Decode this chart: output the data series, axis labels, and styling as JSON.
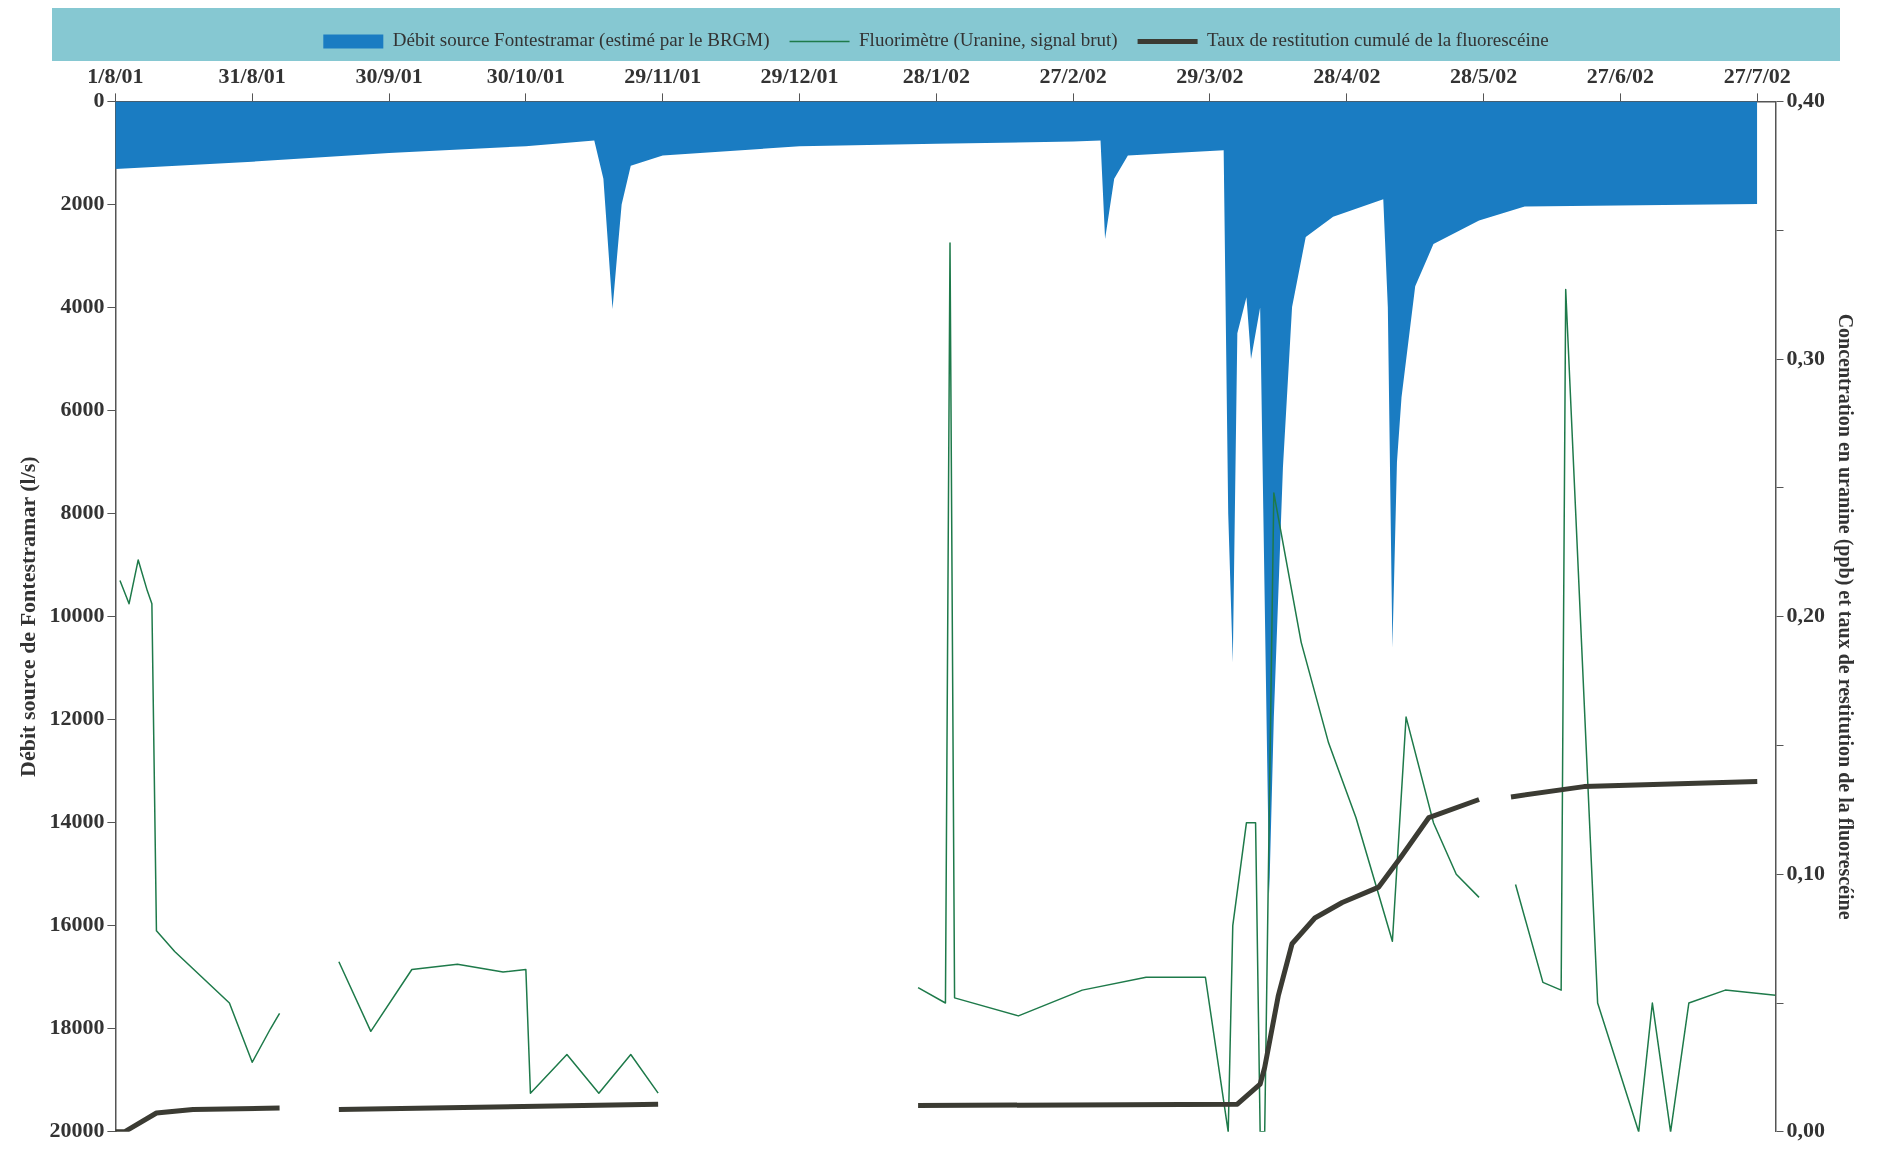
{
  "chart_data": {
    "type": "area",
    "ylabel": "Débit source de Fontestramar (l/s)",
    "y2label": "Concentration en uranine (ppb) et taux de restitution de la fluorescéine",
    "xlim": [
      "2001-08-01",
      "2002-07-31"
    ],
    "xticks": [
      {
        "value": "2001-08-01",
        "label": "1/8/01"
      },
      {
        "value": "2001-08-31",
        "label": "31/8/01"
      },
      {
        "value": "2001-09-30",
        "label": "30/9/01"
      },
      {
        "value": "2001-10-30",
        "label": "30/10/01"
      },
      {
        "value": "2001-11-29",
        "label": "29/11/01"
      },
      {
        "value": "2001-12-29",
        "label": "29/12/01"
      },
      {
        "value": "2002-01-28",
        "label": "28/1/02"
      },
      {
        "value": "2002-02-27",
        "label": "27/2/02"
      },
      {
        "value": "2002-03-29",
        "label": "29/3/02"
      },
      {
        "value": "2002-04-28",
        "label": "28/4/02"
      },
      {
        "value": "2002-05-28",
        "label": "28/5/02"
      },
      {
        "value": "2002-06-27",
        "label": "27/6/02"
      },
      {
        "value": "2002-07-27",
        "label": "27/7/02"
      }
    ],
    "ylim": [
      20000,
      0
    ],
    "yticks": [
      0,
      2000,
      4000,
      6000,
      8000,
      10000,
      12000,
      14000,
      16000,
      18000,
      20000
    ],
    "y2lim": [
      0,
      0.4
    ],
    "y2ticks": [
      {
        "value": 0,
        "label": "0,00"
      },
      {
        "value": 0.05,
        "label": null
      },
      {
        "value": 0.1,
        "label": "0,10"
      },
      {
        "value": 0.15,
        "label": null
      },
      {
        "value": 0.2,
        "label": "0,20"
      },
      {
        "value": 0.25,
        "label": null
      },
      {
        "value": 0.3,
        "label": "0,30"
      },
      {
        "value": 0.35,
        "label": null
      },
      {
        "value": 0.4,
        "label": "0,40"
      }
    ],
    "grid": false,
    "legend": "top",
    "marker": "none",
    "series": [
      {
        "name": "Débit source Fontestramar (estimé par le BRGM)",
        "color": "#1a7cc2",
        "x": [
          "2001-08-01",
          "2001-08-31",
          "2001-09-30",
          "2001-10-30",
          "2001-11-14",
          "2001-11-16",
          "2001-11-18",
          "2001-11-19",
          "2001-11-20",
          "2001-11-22",
          "2001-11-29",
          "2001-12-29",
          "2002-01-28",
          "2002-02-27",
          "2002-03-05",
          "2002-03-06",
          "2002-03-08",
          "2002-03-11",
          "2002-04-01",
          "2002-04-02",
          "2002-04-03",
          "2002-04-04",
          "2002-04-06",
          "2002-04-07",
          "2002-04-09",
          "2002-04-11",
          "2002-04-12",
          "2002-04-14",
          "2002-04-16",
          "2002-04-19",
          "2002-04-25",
          "2002-05-06",
          "2002-05-07",
          "2002-05-08",
          "2002-05-09",
          "2002-05-10",
          "2002-05-13",
          "2002-05-17",
          "2002-05-27",
          "2002-06-06",
          "2002-07-27"
        ],
        "values": [
          1310,
          1170,
          1000,
          870,
          760,
          1500,
          4030,
          3000,
          2000,
          1250,
          1050,
          870,
          820,
          780,
          760,
          2670,
          1500,
          1050,
          950,
          8000,
          10890,
          4500,
          3800,
          5000,
          4000,
          15380,
          11960,
          7100,
          3990,
          2630,
          2240,
          1900,
          4000,
          10600,
          7000,
          5740,
          3590,
          2770,
          2310,
          2040,
          1990
        ]
      },
      {
        "name": "Fluorimètre (Uranine, signal brut)",
        "type": "line",
        "axis": "y2",
        "color": "#1e7a4a",
        "x": [
          "2001-08-02",
          "2001-08-04",
          "2001-08-06",
          "2001-08-08",
          "2001-08-09",
          "2001-08-10",
          "2001-08-14",
          "2001-08-20",
          "2001-08-26",
          "2001-08-31",
          "2001-09-04",
          "2001-09-06",
          "2001-09-10",
          "2001-09-19",
          "2001-09-26",
          "2001-10-05",
          "2001-10-15",
          "2001-10-25",
          "2001-10-30",
          "2001-10-31",
          "2001-11-08",
          "2001-11-15",
          "2001-11-22",
          "2001-11-28",
          "2001-12-20",
          "2002-01-24",
          "2002-01-30",
          "2002-01-31",
          "2002-02-01",
          "2002-02-15",
          "2002-03-01",
          "2002-03-15",
          "2002-03-28",
          "2002-04-02",
          "2002-04-03",
          "2002-04-06",
          "2002-04-08",
          "2002-04-09",
          "2002-04-10",
          "2002-04-12",
          "2002-04-18",
          "2002-04-24",
          "2002-04-30",
          "2002-05-05",
          "2002-05-08",
          "2002-05-11",
          "2002-05-17",
          "2002-05-22",
          "2002-05-27",
          "2002-05-30",
          "2002-06-04",
          "2002-06-10",
          "2002-06-14",
          "2002-06-15",
          "2002-06-22",
          "2002-07-01",
          "2002-07-04",
          "2002-07-08",
          "2002-07-12",
          "2002-07-20",
          "2002-07-31"
        ],
        "values": [
          0.214,
          0.205,
          0.222,
          0.21,
          0.205,
          0.078,
          0.07,
          0.06,
          0.05,
          0.027,
          0.04,
          0.046,
          null,
          0.066,
          0.039,
          0.063,
          0.065,
          0.062,
          0.063,
          0.015,
          0.03,
          0.015,
          0.03,
          0.015,
          null,
          0.056,
          0.05,
          0.345,
          0.052,
          0.045,
          0.055,
          0.06,
          0.06,
          0.0,
          0.08,
          0.12,
          0.12,
          0.0,
          0.0,
          0.248,
          0.19,
          0.151,
          0.122,
          0.092,
          0.074,
          0.161,
          0.12,
          0.1,
          0.091,
          null,
          0.096,
          0.058,
          0.055,
          0.327,
          0.05,
          0.0,
          0.05,
          0.0,
          0.05,
          0.055,
          0.053
        ]
      },
      {
        "name": "Taux de restitution cumulé de la fluorescéine",
        "type": "line",
        "axis": "y2",
        "color": "#3b3b33",
        "x": [
          "2001-08-01",
          "2001-08-03",
          "2001-08-10",
          "2001-08-18",
          "2001-09-06",
          "2001-09-12",
          "2001-09-19",
          "2001-11-28",
          "2001-12-20",
          "2002-01-24",
          "2002-04-04",
          "2002-04-09",
          "2002-04-10",
          "2002-04-13",
          "2002-04-16",
          "2002-04-21",
          "2002-04-27",
          "2002-05-05",
          "2002-05-10",
          "2002-05-16",
          "2002-05-27",
          "2002-05-30",
          "2002-06-03",
          "2002-06-19",
          "2002-07-27"
        ],
        "values": [
          0,
          0,
          0.0073,
          0.0087,
          0.0092,
          null,
          0.0087,
          0.0107,
          null,
          0.0102,
          0.0107,
          0.0185,
          0.025,
          0.053,
          0.073,
          0.083,
          0.089,
          0.095,
          0.107,
          0.122,
          0.129,
          null,
          0.13,
          0.134,
          0.136
        ]
      }
    ]
  }
}
